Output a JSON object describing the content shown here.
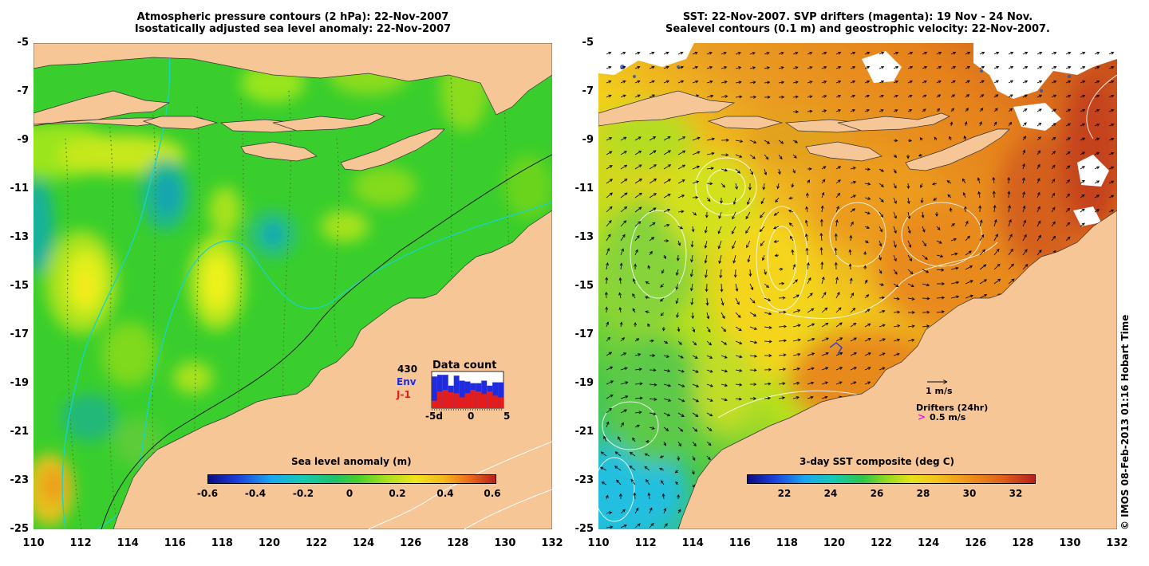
{
  "left_panel": {
    "title_line1": "Atmospheric pressure contours (2 hPa): 22-Nov-2007",
    "title_line2": "Isostatically adjusted sea level anomaly: 22-Nov-2007",
    "colorbar": {
      "title": "Sea level anomaly (m)",
      "ticks": [
        "-0.6",
        "-0.4",
        "-0.2",
        "0",
        "0.2",
        "0.4",
        "0.6"
      ],
      "range": [
        -0.6,
        0.6
      ]
    },
    "data_count": {
      "title": "Data count",
      "total": "430",
      "series1_label": "Env",
      "series2_label": "J-1",
      "series1_color": "#1f2bdc",
      "series2_color": "#e21d1d",
      "xtick_labels": [
        "-5d",
        "0",
        "5"
      ],
      "env_values": [
        38,
        40,
        40,
        27,
        39,
        33,
        32,
        30,
        30,
        33,
        27,
        31,
        31
      ],
      "j1_values": [
        9,
        20,
        22,
        19,
        18,
        13,
        18,
        22,
        20,
        17,
        20,
        15,
        13
      ],
      "ymax": 44
    }
  },
  "right_panel": {
    "title_line1": "SST: 22-Nov-2007. SVP drifters (magenta): 19 Nov - 24 Nov.",
    "title_line2": "Sealevel contours (0.1 m) and geostrophic velocity: 22-Nov-2007.",
    "colorbar": {
      "title": "3-day SST composite (deg C)",
      "ticks": [
        "22",
        "24",
        "26",
        "28",
        "30",
        "32"
      ],
      "range": [
        20.6,
        33
      ]
    },
    "legend": {
      "velocity_label": "1 m/s",
      "drifters_label": "Drifters (24hr)",
      "drifter_speed_label": "0.5 m/s",
      "drifter_marker": ">",
      "drifter_color": "#e01be0"
    }
  },
  "axes": {
    "lat_labels": [
      "-5",
      "-7",
      "-9",
      "-11",
      "-13",
      "-15",
      "-17",
      "-19",
      "-21",
      "-23",
      "-25"
    ],
    "lon_labels": [
      "110",
      "112",
      "114",
      "116",
      "118",
      "120",
      "122",
      "124",
      "126",
      "128",
      "130",
      "132"
    ]
  },
  "copyright": "© IMOS 08-Feb-2013 01:16 Hobart Time",
  "colors": {
    "land": "#f7c697",
    "sla_base": "#39ce2d",
    "sst_warm": "#e98d22",
    "contour_cyan": "#19d3c8"
  }
}
